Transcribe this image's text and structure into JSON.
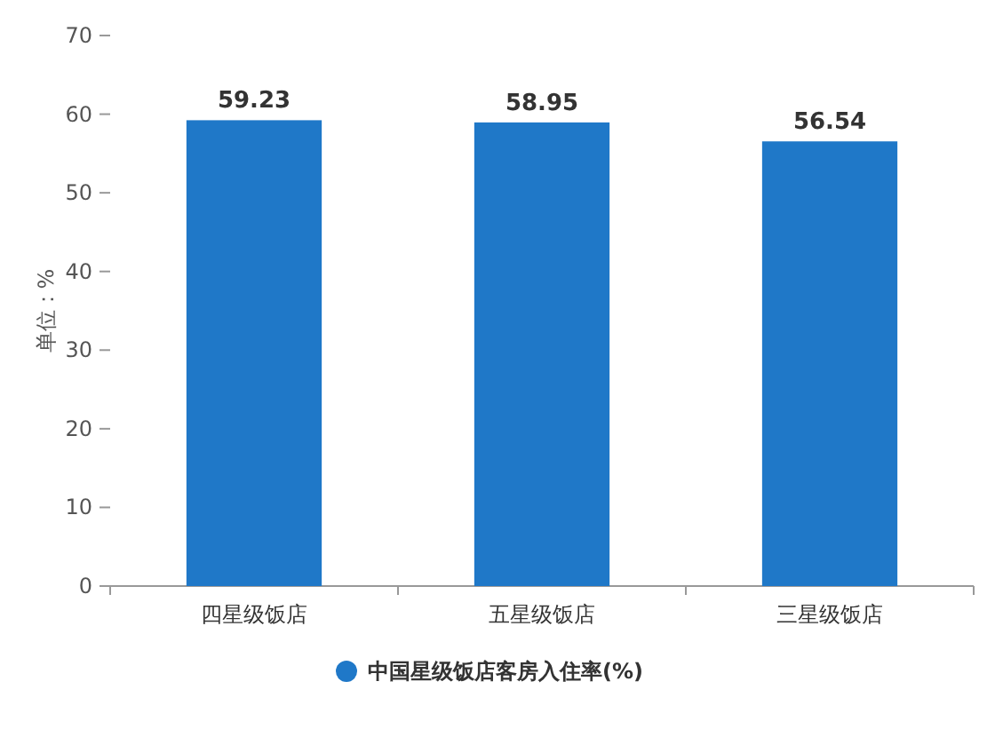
{
  "chart_data": {
    "type": "bar",
    "ylabel": "单位：%",
    "categories": [
      "四星级饭店",
      "五星级饭店",
      "三星级饭店"
    ],
    "series": [
      {
        "name": "中国星级饭店客房入住率(%)",
        "color": "#1f78c8",
        "values": [
          59.23,
          58.95,
          56.54
        ]
      }
    ],
    "ylim": [
      0,
      70
    ],
    "yticks": [
      0,
      10,
      20,
      30,
      40,
      50,
      60,
      70
    ],
    "data_labels": true,
    "legend": "bottom"
  }
}
